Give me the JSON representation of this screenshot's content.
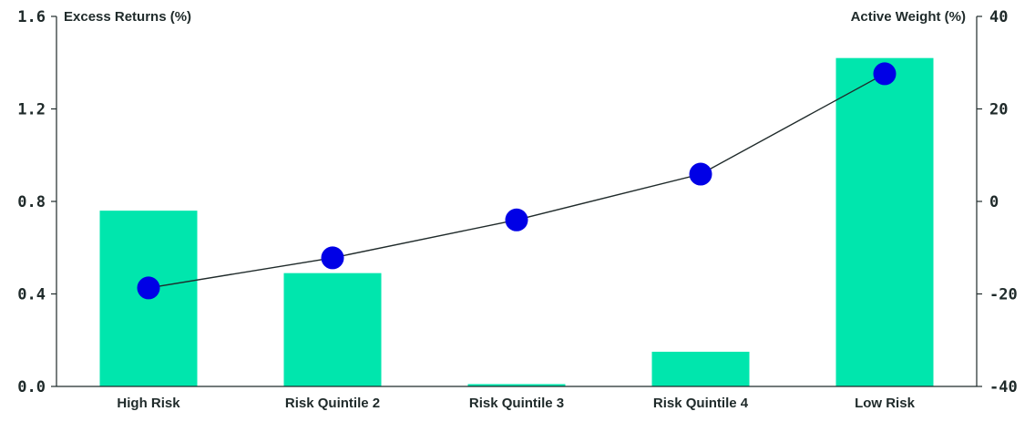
{
  "chart_data": {
    "type": "bar",
    "categories": [
      "High Risk",
      "Risk Quintile 2",
      "Risk Quintile 3",
      "Risk Quintile 4",
      "Low Risk"
    ],
    "series": [
      {
        "name": "Excess Returns (%)",
        "type": "bar",
        "axis": "left",
        "values": [
          0.76,
          0.49,
          0.01,
          0.15,
          1.42
        ]
      },
      {
        "name": "Active Weight (%)",
        "type": "line",
        "axis": "right",
        "values": [
          -18.7,
          -12.2,
          -4.0,
          5.9,
          27.6
        ]
      }
    ],
    "left_axis": {
      "title": "Excess Returns (%)",
      "ylim": [
        0,
        1.6
      ],
      "ticks": [
        "0.0",
        "0.4",
        "0.8",
        "1.2",
        "1.6"
      ]
    },
    "right_axis": {
      "title": "Active Weight (%)",
      "ylim": [
        -40,
        40
      ],
      "ticks": [
        "-40",
        "-20",
        "0",
        "20",
        "40"
      ]
    },
    "grid": false,
    "legend": "none",
    "colors": {
      "bar": "#00e6ad",
      "line": "#1f2a2a",
      "marker": "#0000e6",
      "axis": "#1f2a2a"
    }
  }
}
